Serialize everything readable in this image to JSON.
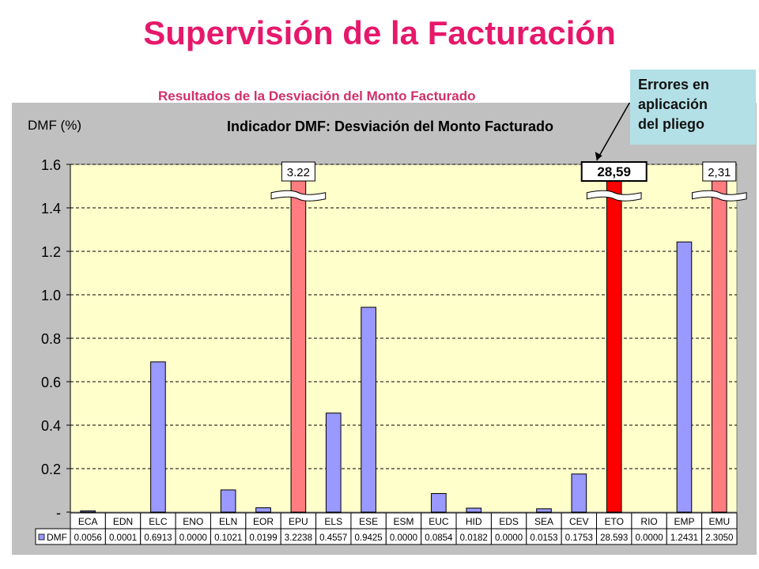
{
  "page": {
    "title": "Supervisión de la Facturación",
    "subtitle": "Resultados de la Desviación del Monto Facturado",
    "callout_lines": [
      "Errores en",
      "aplicación",
      "del pliego"
    ]
  },
  "colors": {
    "title": "#e6186b",
    "subtitle": "#d0306a",
    "plot_background": "#ffffcc",
    "panel_background": "#c0c0c0",
    "bar_default": "#9999ff",
    "bar_highlight": "#ff7c80",
    "bar_error": "#ff0000",
    "callout_background": "#b3e0e6"
  },
  "chart_data": {
    "type": "bar",
    "title": "Indicador DMF: Desviación del Monto Facturado",
    "ylabel": "DMF (%)",
    "ylim": [
      0,
      1.6
    ],
    "yticks": [
      "-",
      "0.2",
      "0.4",
      "0.6",
      "0.8",
      "1.0",
      "1.2",
      "1.4",
      "1.6"
    ],
    "grid": true,
    "axis_break": true,
    "categories": [
      "ECA",
      "EDN",
      "ELC",
      "ENO",
      "ELN",
      "EOR",
      "EPU",
      "ELS",
      "ESE",
      "ESM",
      "EUC",
      "HID",
      "EDS",
      "SEA",
      "CEV",
      "ETO",
      "RIO",
      "EMP",
      "EMU"
    ],
    "series": [
      {
        "name": "DMF",
        "values": [
          0.0056,
          0.0001,
          0.6913,
          0.0,
          0.1021,
          0.0199,
          3.2238,
          0.4557,
          0.9425,
          0.0,
          0.0854,
          0.0182,
          0.0,
          0.0153,
          0.1753,
          28.593,
          0.0,
          1.2431,
          2.305
        ],
        "table_labels": [
          "0.0056",
          "0.0001",
          "0.6913",
          "0.0000",
          "0.1021",
          "0.0199",
          "3.2238",
          "0.4557",
          "0.9425",
          "0.0000",
          "0.0854",
          "0.0182",
          "0.0000",
          "0.0153",
          "0.1753",
          "28.593",
          "0.0000",
          "1.2431",
          "2.3050"
        ]
      }
    ],
    "highlight_categories": [
      "EPU",
      "ETO",
      "EMU"
    ],
    "error_category": "ETO",
    "off_scale_labels": [
      {
        "category": "EPU",
        "label": "3.22"
      },
      {
        "category": "ETO",
        "label": "28,59"
      },
      {
        "category": "EMU",
        "label": "2,31"
      }
    ]
  }
}
